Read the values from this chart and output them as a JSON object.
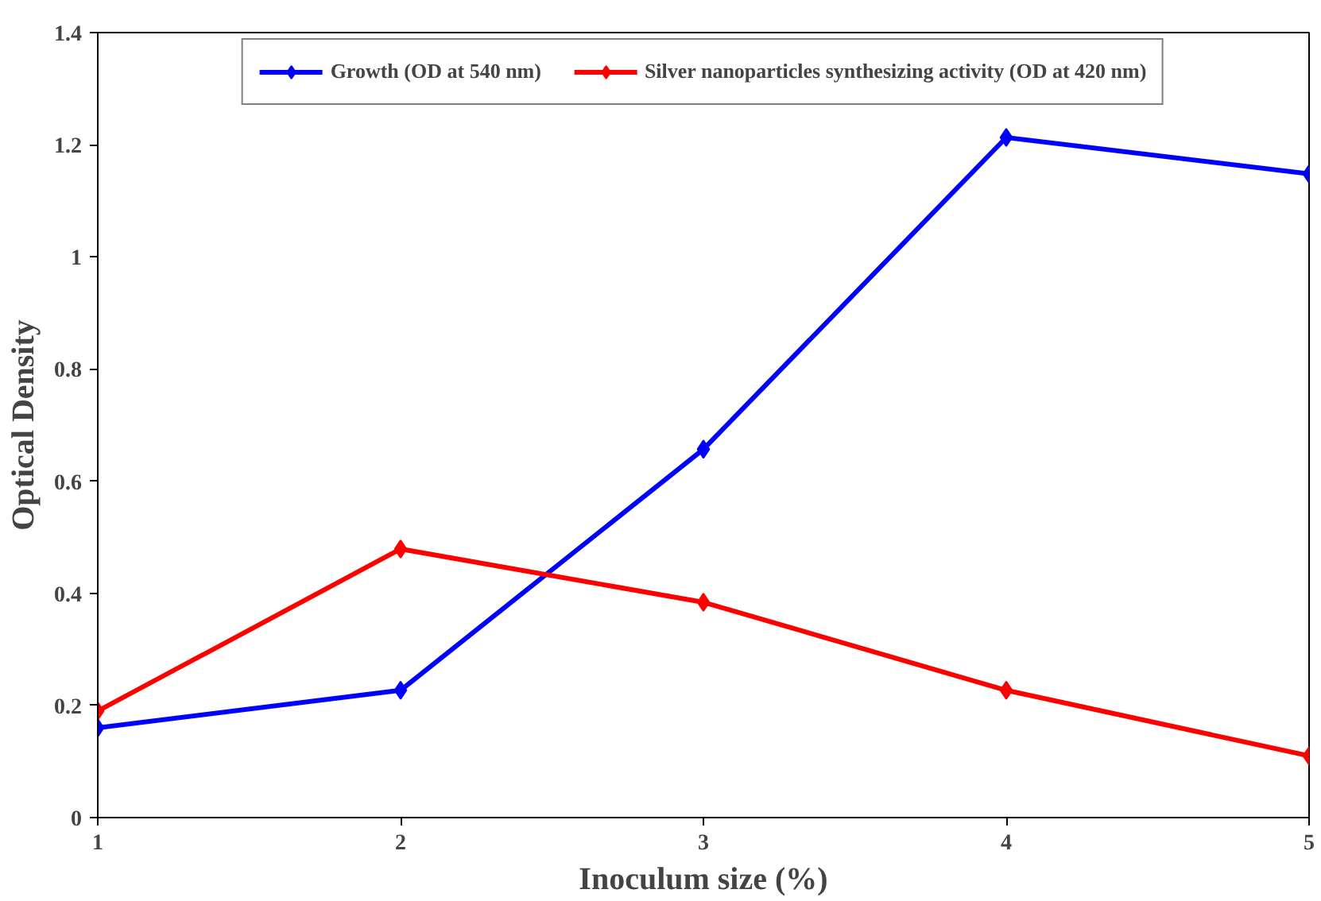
{
  "chart_data": {
    "type": "line",
    "xlabel": "Inoculum size (%)",
    "ylabel": "Optical Density",
    "x": [
      1,
      2,
      3,
      4,
      5
    ],
    "series": [
      {
        "name": "Growth (OD at 540 nm)",
        "color": "#0000ff",
        "values": [
          0.16,
          0.227,
          0.657,
          1.213,
          1.148
        ]
      },
      {
        "name": "Silver nanoparticles synthesizing activity (OD at 420 nm)",
        "color": "#ff0000",
        "values": [
          0.19,
          0.479,
          0.384,
          0.227,
          0.11
        ]
      }
    ],
    "xlim": [
      1,
      5
    ],
    "xticks": [
      1,
      2,
      3,
      4,
      5
    ],
    "ylim": [
      0,
      1.4
    ],
    "yticks": [
      0,
      0.2,
      0.4,
      0.6,
      0.8,
      1,
      1.2,
      1.4
    ],
    "grid": false,
    "legend": "top",
    "marker": "diamond",
    "line_style": "solid"
  }
}
